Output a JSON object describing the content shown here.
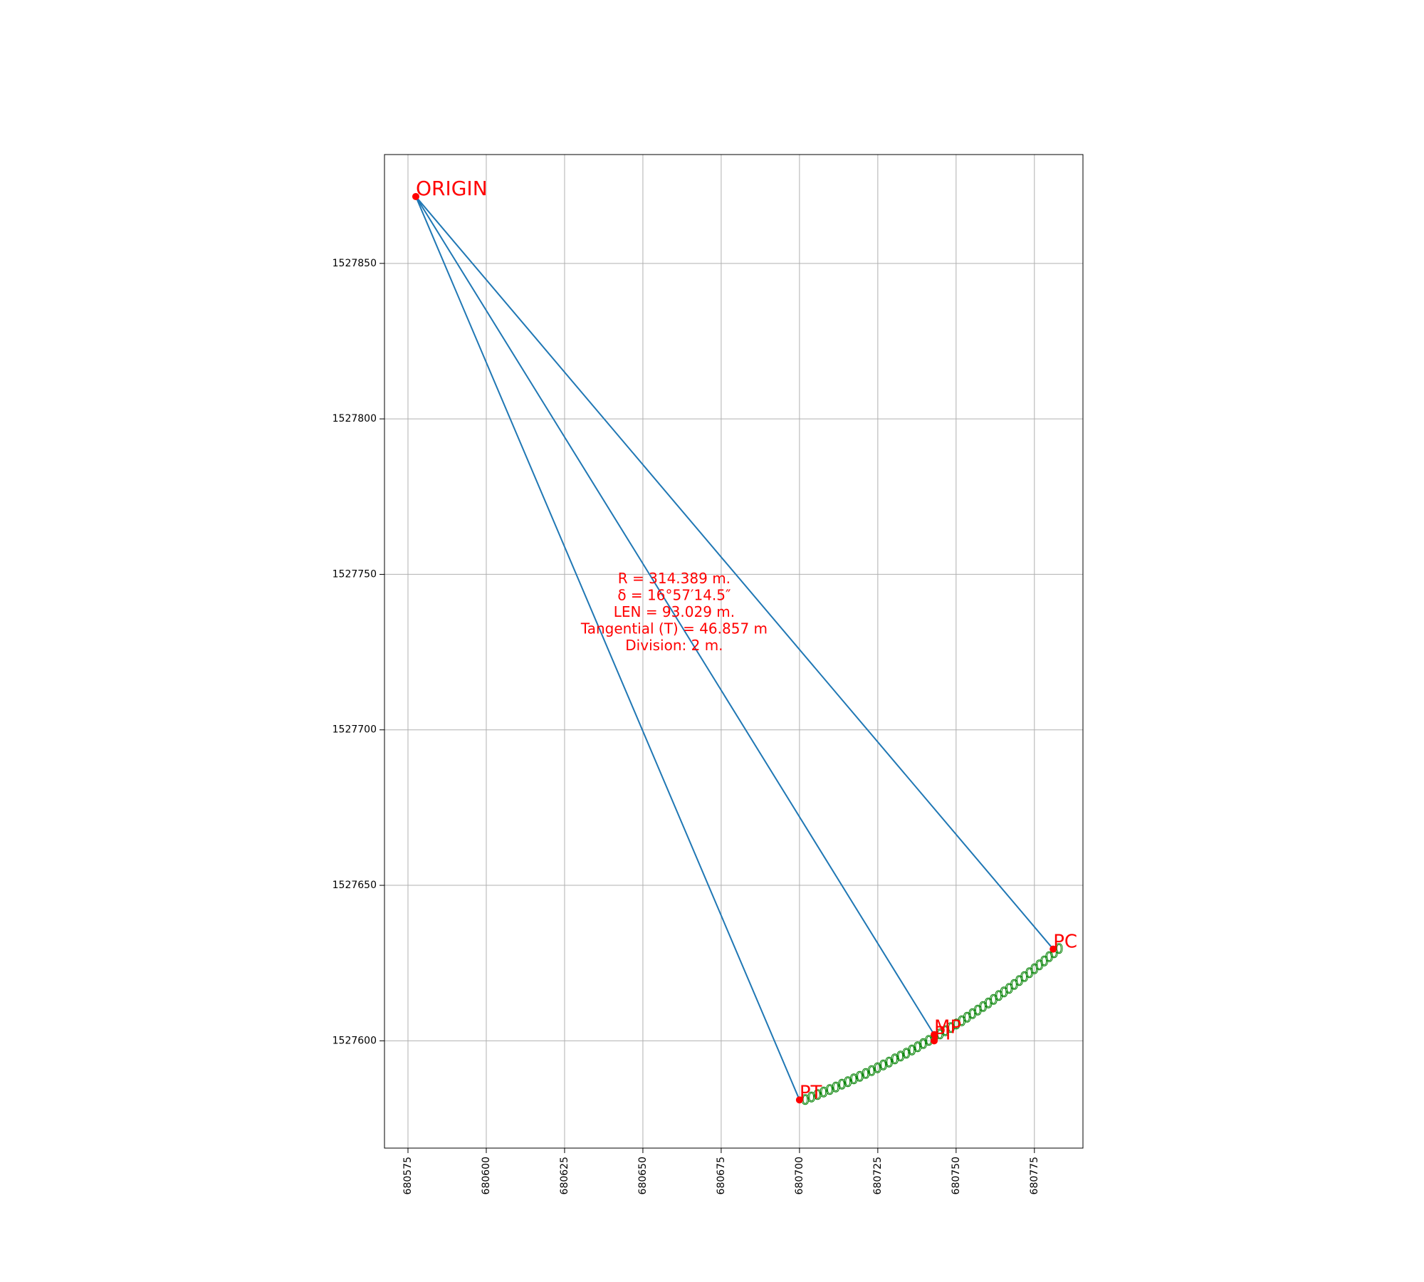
{
  "chart_data": {
    "type": "scatter",
    "title": "",
    "xlabel": "",
    "ylabel": "",
    "xlim": [
      680567.5,
      680790.5
    ],
    "ylim": [
      1527565.5,
      1527885
    ],
    "grid": true,
    "x_ticks": [
      680575,
      680600,
      680625,
      680650,
      680675,
      680700,
      680725,
      680750,
      680775
    ],
    "y_ticks": [
      1527600,
      1527650,
      1527700,
      1527750,
      1527800,
      1527850
    ],
    "x_tick_rotation": 90,
    "points": [
      {
        "name": "ORIGIN",
        "x": 680577.5,
        "y": 1527871.5
      },
      {
        "name": "PC",
        "x": 680781.0,
        "y": 1527629.5
      },
      {
        "name": "MP",
        "x": 680743.0,
        "y": 1527602.0
      },
      {
        "name": "PI",
        "x": 680743.0,
        "y": 1527600.0
      },
      {
        "name": "PT",
        "x": 680700.0,
        "y": 1527581.0
      }
    ],
    "radial_lines": [
      {
        "from": "ORIGIN",
        "to": "PC"
      },
      {
        "from": "ORIGIN",
        "to": "MP"
      },
      {
        "from": "ORIGIN",
        "to": "PT"
      }
    ],
    "annotation_lines": [
      "R = 314.389 m.",
      "δ = 16°57′14.5″",
      "LEN = 93.029 m.",
      "Tangential (T) = 46.857 m",
      "Division: 2 m."
    ],
    "annotation_anchor": {
      "x": 680660.0,
      "y": 1527738.0
    },
    "station_marks": {
      "count": 47,
      "label_template": "0",
      "curve_from": "PT",
      "curve_via": "MP",
      "curve_to": "PC"
    },
    "colors": {
      "line": "#1f77b4",
      "point": "#ff0000",
      "label": "#ff0000",
      "station": "#008000",
      "grid": "#b0b0b0",
      "axes": "#000000"
    }
  }
}
